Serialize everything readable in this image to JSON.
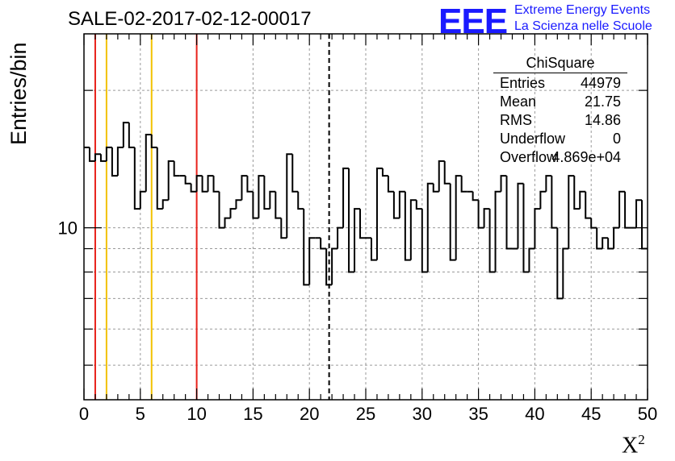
{
  "title": "SALE-02-2017-02-12-00017",
  "logo": {
    "mark": "EEE",
    "line1": "Extreme Energy Events",
    "line2": "La Scienza nelle Scuole"
  },
  "stats": {
    "title": "ChiSquare",
    "rows": [
      {
        "key": "Entries",
        "value": "44979"
      },
      {
        "key": "Mean",
        "value": "21.75"
      },
      {
        "key": "RMS",
        "value": "14.86"
      },
      {
        "key": "Underflow",
        "value": "0"
      },
      {
        "key": "Overflow",
        "value": "4.869e+04"
      }
    ]
  },
  "chart_data": {
    "type": "step-histogram",
    "title": "SALE-02-2017-02-12-00017",
    "xlabel": "X",
    "xlabel_sup": "2",
    "ylabel": "Entries/bin",
    "xlim": [
      0,
      50
    ],
    "ylim": [
      4.2,
      26.6
    ],
    "yscale": "log",
    "grid": true,
    "x_ticks": [
      0,
      5,
      10,
      15,
      20,
      25,
      30,
      35,
      40,
      45,
      50
    ],
    "y_tick_labels": [
      10
    ],
    "bin_width": 0.5,
    "bin_values": [
      15,
      14,
      14.5,
      14,
      15,
      13,
      15,
      17,
      15,
      11,
      12,
      16,
      15,
      11,
      11.5,
      14,
      13,
      13,
      12.5,
      12,
      13,
      12,
      13,
      12,
      10,
      10.5,
      11,
      11.5,
      13,
      12,
      10.5,
      13,
      11,
      12,
      10.5,
      9.5,
      14.5,
      12,
      11,
      7.5,
      9.5,
      9.5,
      9,
      7.5,
      9,
      10,
      13.5,
      8,
      11,
      9.5,
      9.5,
      8.5,
      13.5,
      13,
      12,
      10.5,
      12,
      8.5,
      11.5,
      11,
      8,
      12.5,
      12,
      14,
      12.5,
      8.5,
      13,
      12,
      12,
      11.5,
      10,
      11,
      8,
      12,
      13,
      9,
      9,
      12.5,
      8,
      9,
      11,
      12,
      13,
      10,
      7,
      9,
      13,
      11,
      12,
      10.5,
      10,
      9,
      9.5,
      9,
      10,
      12,
      10,
      10,
      11.5,
      9
    ],
    "reference_lines": [
      {
        "x": 1,
        "color": "#e8211a",
        "style": "solid"
      },
      {
        "x": 2,
        "color": "#f2c200",
        "style": "solid"
      },
      {
        "x": 6,
        "color": "#f2c200",
        "style": "solid"
      },
      {
        "x": 10,
        "color": "#e8211a",
        "style": "solid"
      },
      {
        "x": 21.75,
        "color": "#000000",
        "style": "dashed"
      }
    ]
  }
}
